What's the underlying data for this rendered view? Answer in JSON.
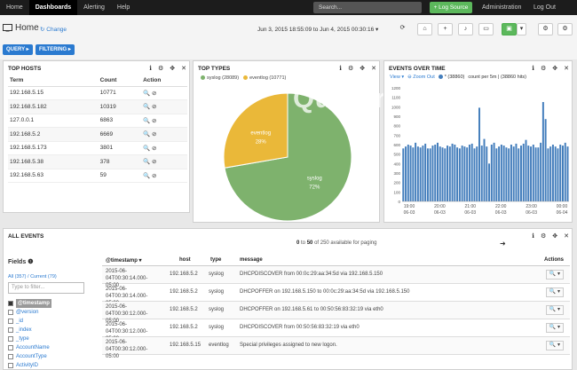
{
  "topnav": {
    "items": [
      "Home",
      "Dashboards",
      "Alerting",
      "Help"
    ],
    "active": "Dashboards",
    "search_placeholder": "Search...",
    "log_source": "+ Log Source",
    "admin": "Administration",
    "logout": "Log Out"
  },
  "header": {
    "title": "Home",
    "change": "Change",
    "date_range": "Jun 3, 2015 18:55:09 to Jun 4, 2015 00:30:16 ▾"
  },
  "pills": {
    "query": "QUERY ▸",
    "filtering": "FILTERING ▸"
  },
  "watermark": "Quantrimang",
  "top_hosts": {
    "title": "TOP HOSTS",
    "headers": [
      "Term",
      "Count",
      "Action"
    ],
    "rows": [
      {
        "term": "192.168.5.15",
        "count": "10771"
      },
      {
        "term": "192.168.5.182",
        "count": "10319"
      },
      {
        "term": "127.0.0.1",
        "count": "6863"
      },
      {
        "term": "192.168.5.2",
        "count": "6669"
      },
      {
        "term": "192.168.5.173",
        "count": "3801"
      },
      {
        "term": "192.168.5.38",
        "count": "378"
      },
      {
        "term": "192.168.5.63",
        "count": "59"
      }
    ]
  },
  "top_types": {
    "title": "TOP TYPES",
    "legend": [
      "syslog (28089)",
      "eventlog (10771)"
    ],
    "colors": {
      "syslog": "#7eb26d",
      "eventlog": "#eab839"
    }
  },
  "events_over_time": {
    "title": "EVENTS OVER TIME",
    "view": "View ▾",
    "zoom_out": "Zoom Out",
    "series": "* (38860)",
    "count_label": "count per 5m | (38860 hits)",
    "bar_color": "#447ebc"
  },
  "all_events": {
    "title": "ALL EVENTS",
    "paging_a": "0",
    "paging_to": "to",
    "paging_b": "50",
    "paging_tail": "of 250 available for paging",
    "fields_title": "Fields",
    "field_counts": "All (357) / Current (79)",
    "filter_placeholder": "Type to filter...",
    "fields": [
      "@timestamp",
      "@version",
      "_id",
      "_index",
      "_type",
      "AccountName",
      "AccountType",
      "ActivityID"
    ],
    "col_headers": [
      "@timestamp ▾",
      "host",
      "type",
      "message",
      "Actions"
    ],
    "rows": [
      {
        "ts": "2015-06-04T00:30:14.000-05:00",
        "host": "192.168.5.2",
        "type": "syslog",
        "msg": "DHCPDISCOVER from 00:0c:29:aa:34:5d via 192.168.5.150"
      },
      {
        "ts": "2015-06-04T00:30:14.000-05:00",
        "host": "192.168.5.2",
        "type": "syslog",
        "msg": "DHCPOFFER on 192.168.5.150 to 00:0c:29:aa:34:5d via 192.168.5.150"
      },
      {
        "ts": "2015-06-04T00:30:12.000-05:00",
        "host": "192.168.5.2",
        "type": "syslog",
        "msg": "DHCPOFFER on 192.168.5.61 to 00:50:56:83:32:19 via eth0"
      },
      {
        "ts": "2015-06-04T00:30:12.000-05:00",
        "host": "192.168.5.2",
        "type": "syslog",
        "msg": "DHCPDISCOVER from 00:50:56:83:32:19 via eth0"
      },
      {
        "ts": "2015-06-04T00:30:12.000-05:00",
        "host": "192.168.5.15",
        "type": "eventlog",
        "msg": "Special privileges assigned to new logon."
      }
    ]
  },
  "chart_data": [
    {
      "type": "pie",
      "categories": [
        "syslog",
        "eventlog"
      ],
      "values": [
        28089,
        10771
      ],
      "labels": [
        "syslog 72%",
        "eventlog 28%"
      ]
    },
    {
      "type": "bar",
      "ylim": [
        0,
        1200
      ],
      "yticks": [
        0,
        100,
        200,
        300,
        400,
        500,
        600,
        700,
        800,
        900,
        1000,
        1100,
        1200
      ],
      "xticks": [
        "19:00\n06-03",
        "20:00\n06-03",
        "21:00\n06-03",
        "22:00\n06-03",
        "23:00\n06-03",
        "00:00\n06-04"
      ],
      "values": [
        560,
        580,
        600,
        590,
        570,
        620,
        580,
        570,
        590,
        610,
        560,
        560,
        590,
        600,
        620,
        580,
        570,
        560,
        590,
        580,
        610,
        600,
        570,
        560,
        590,
        580,
        570,
        600,
        610,
        560,
        580,
        990,
        590,
        660,
        580,
        400,
        600,
        620,
        560,
        580,
        600,
        590,
        570,
        560,
        600,
        580,
        610,
        560,
        590,
        610,
        650,
        590,
        580,
        600,
        570,
        570,
        620,
        1050,
        870,
        560,
        580,
        600,
        580,
        560,
        600,
        590,
        620,
        580
      ]
    }
  ]
}
